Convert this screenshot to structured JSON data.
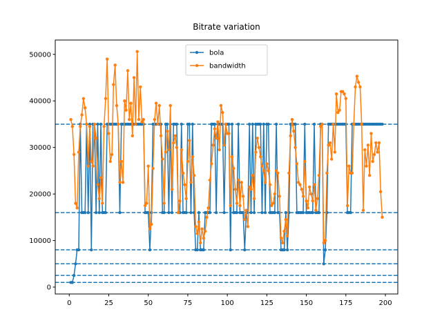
{
  "chart_data": {
    "type": "line",
    "title": "Bitrate variation",
    "x": [
      1,
      2,
      3,
      4,
      5,
      6,
      7,
      8,
      9,
      10,
      11,
      12,
      13,
      14,
      15,
      16,
      17,
      18,
      19,
      20,
      21,
      22,
      23,
      24,
      25,
      26,
      27,
      28,
      29,
      30,
      31,
      32,
      33,
      34,
      35,
      36,
      37,
      38,
      39,
      40,
      41,
      42,
      43,
      44,
      45,
      46,
      47,
      48,
      49,
      50,
      51,
      52,
      53,
      54,
      55,
      56,
      57,
      58,
      59,
      60,
      61,
      62,
      63,
      64,
      65,
      66,
      67,
      68,
      69,
      70,
      71,
      72,
      73,
      74,
      75,
      76,
      77,
      78,
      79,
      80,
      81,
      82,
      83,
      84,
      85,
      86,
      87,
      88,
      89,
      90,
      91,
      92,
      93,
      94,
      95,
      96,
      97,
      98,
      99,
      100,
      101,
      102,
      103,
      104,
      105,
      106,
      107,
      108,
      109,
      110,
      111,
      112,
      113,
      114,
      115,
      116,
      117,
      118,
      119,
      120,
      121,
      122,
      123,
      124,
      125,
      126,
      127,
      128,
      129,
      130,
      131,
      132,
      133,
      134,
      135,
      136,
      137,
      138,
      139,
      140,
      141,
      142,
      143,
      144,
      145,
      146,
      147,
      148,
      149,
      150,
      151,
      152,
      153,
      154,
      155,
      156,
      157,
      158,
      159,
      160,
      161,
      162,
      163,
      164,
      165,
      166,
      167,
      168,
      169,
      170,
      171,
      172,
      173,
      174,
      175,
      176,
      177,
      178,
      179,
      180,
      181,
      182,
      183,
      184,
      185,
      186,
      187,
      188,
      189,
      190,
      191,
      192,
      193,
      194,
      195,
      196,
      197,
      198
    ],
    "series": [
      {
        "name": "bola",
        "color": "#1f77b4",
        "values": [
          1000,
          1000,
          2500,
          5000,
          8000,
          8000,
          35000,
          16000,
          16000,
          16000,
          35000,
          16000,
          35000,
          8000,
          35000,
          35000,
          16000,
          35000,
          16000,
          35000,
          16000,
          16000,
          16000,
          35000,
          35000,
          35000,
          35000,
          35000,
          35000,
          35000,
          35000,
          16000,
          35000,
          35000,
          35000,
          35000,
          35000,
          35000,
          35000,
          35000,
          35000,
          35000,
          35000,
          35000,
          35000,
          35000,
          35000,
          16000,
          16000,
          16000,
          8000,
          16000,
          35000,
          35000,
          35000,
          35000,
          35000,
          35000,
          16000,
          16000,
          35000,
          35000,
          16000,
          35000,
          16000,
          35000,
          35000,
          35000,
          16000,
          16000,
          35000,
          16000,
          16000,
          16000,
          35000,
          35000,
          16000,
          35000,
          16000,
          8000,
          8000,
          16000,
          8000,
          8000,
          8000,
          16000,
          16000,
          16000,
          16000,
          35000,
          35000,
          35000,
          16000,
          35000,
          35000,
          35000,
          35000,
          16000,
          35000,
          35000,
          35000,
          8000,
          35000,
          16000,
          16000,
          16000,
          35000,
          16000,
          16000,
          16000,
          8000,
          16000,
          16000,
          35000,
          16000,
          35000,
          16000,
          35000,
          35000,
          35000,
          35000,
          16000,
          35000,
          16000,
          35000,
          35000,
          16000,
          16000,
          16000,
          16000,
          35000,
          16000,
          16000,
          8000,
          8000,
          8000,
          16000,
          8000,
          16000,
          35000,
          35000,
          35000,
          35000,
          16000,
          16000,
          16000,
          16000,
          16000,
          35000,
          16000,
          16000,
          16000,
          16000,
          16000,
          35000,
          16000,
          16000,
          16000,
          35000,
          35000,
          5000,
          8000,
          16000,
          35000,
          35000,
          35000,
          35000,
          35000,
          35000,
          35000,
          35000,
          35000,
          35000,
          35000,
          35000,
          16000,
          16000,
          16000,
          35000,
          35000,
          35000,
          35000,
          35000,
          35000,
          35000,
          35000,
          35000,
          35000,
          35000,
          35000,
          35000,
          35000,
          35000,
          35000,
          35000,
          35000,
          35000,
          35000
        ]
      },
      {
        "name": "bandwidth",
        "color": "#ff7f0e",
        "values": [
          36000,
          34500,
          28500,
          18000,
          17000,
          29000,
          34500,
          37000,
          40500,
          38500,
          35000,
          26000,
          34500,
          27000,
          26000,
          35000,
          32000,
          22000,
          19000,
          23500,
          18000,
          34500,
          40500,
          49000,
          33000,
          27000,
          28500,
          43500,
          47700,
          39000,
          35000,
          22500,
          27000,
          22500,
          40000,
          38000,
          46500,
          36000,
          39500,
          32500,
          45000,
          35000,
          50600,
          36000,
          43000,
          35500,
          36000,
          17500,
          18000,
          26000,
          12500,
          13500,
          25500,
          36000,
          39500,
          35000,
          39000,
          32500,
          27500,
          18000,
          29000,
          33500,
          29500,
          39000,
          21000,
          31000,
          32500,
          30000,
          16000,
          18500,
          29500,
          24500,
          22000,
          19000,
          27000,
          31500,
          22500,
          28000,
          24000,
          13000,
          11500,
          14000,
          9500,
          12500,
          10500,
          12000,
          15000,
          17000,
          23000,
          26500,
          30500,
          34000,
          32000,
          35500,
          29500,
          39000,
          37500,
          30500,
          35000,
          33000,
          33000,
          17500,
          28000,
          25500,
          21000,
          18000,
          23000,
          17500,
          22500,
          19500,
          14500,
          16500,
          13000,
          21500,
          21000,
          24000,
          19000,
          29000,
          32000,
          30000,
          28000,
          26000,
          25000,
          22500,
          26500,
          25000,
          22000,
          17500,
          18000,
          20000,
          25000,
          24500,
          19500,
          10500,
          9500,
          12000,
          14500,
          11000,
          24500,
          32500,
          36000,
          33500,
          30000,
          26500,
          22500,
          22000,
          21000,
          19500,
          27000,
          18500,
          17000,
          21500,
          20000,
          18500,
          22000,
          16500,
          19000,
          24000,
          34500,
          35000,
          9500,
          10000,
          24500,
          30500,
          31000,
          27500,
          35000,
          29000,
          41500,
          37500,
          38000,
          42000,
          42000,
          41500,
          40500,
          17500,
          26000,
          24500,
          24500,
          35000,
          43000,
          45300,
          44000,
          43000,
          35000,
          16500,
          29500,
          26000,
          30500,
          24000,
          33000,
          27000,
          28500,
          31000,
          29000,
          31000,
          20500,
          15000
        ]
      }
    ],
    "hlines": [
      1000,
      2500,
      5000,
      8000,
      16000,
      35000
    ],
    "hline_color": "#1f77b4",
    "xlim": [
      -8.85,
      207.85
    ],
    "ylim": [
      -1480,
      53080
    ],
    "xticks": [
      0,
      25,
      50,
      75,
      100,
      125,
      150,
      175,
      200
    ],
    "yticks": [
      0,
      10000,
      20000,
      30000,
      40000,
      50000
    ],
    "legend": "upper center"
  }
}
